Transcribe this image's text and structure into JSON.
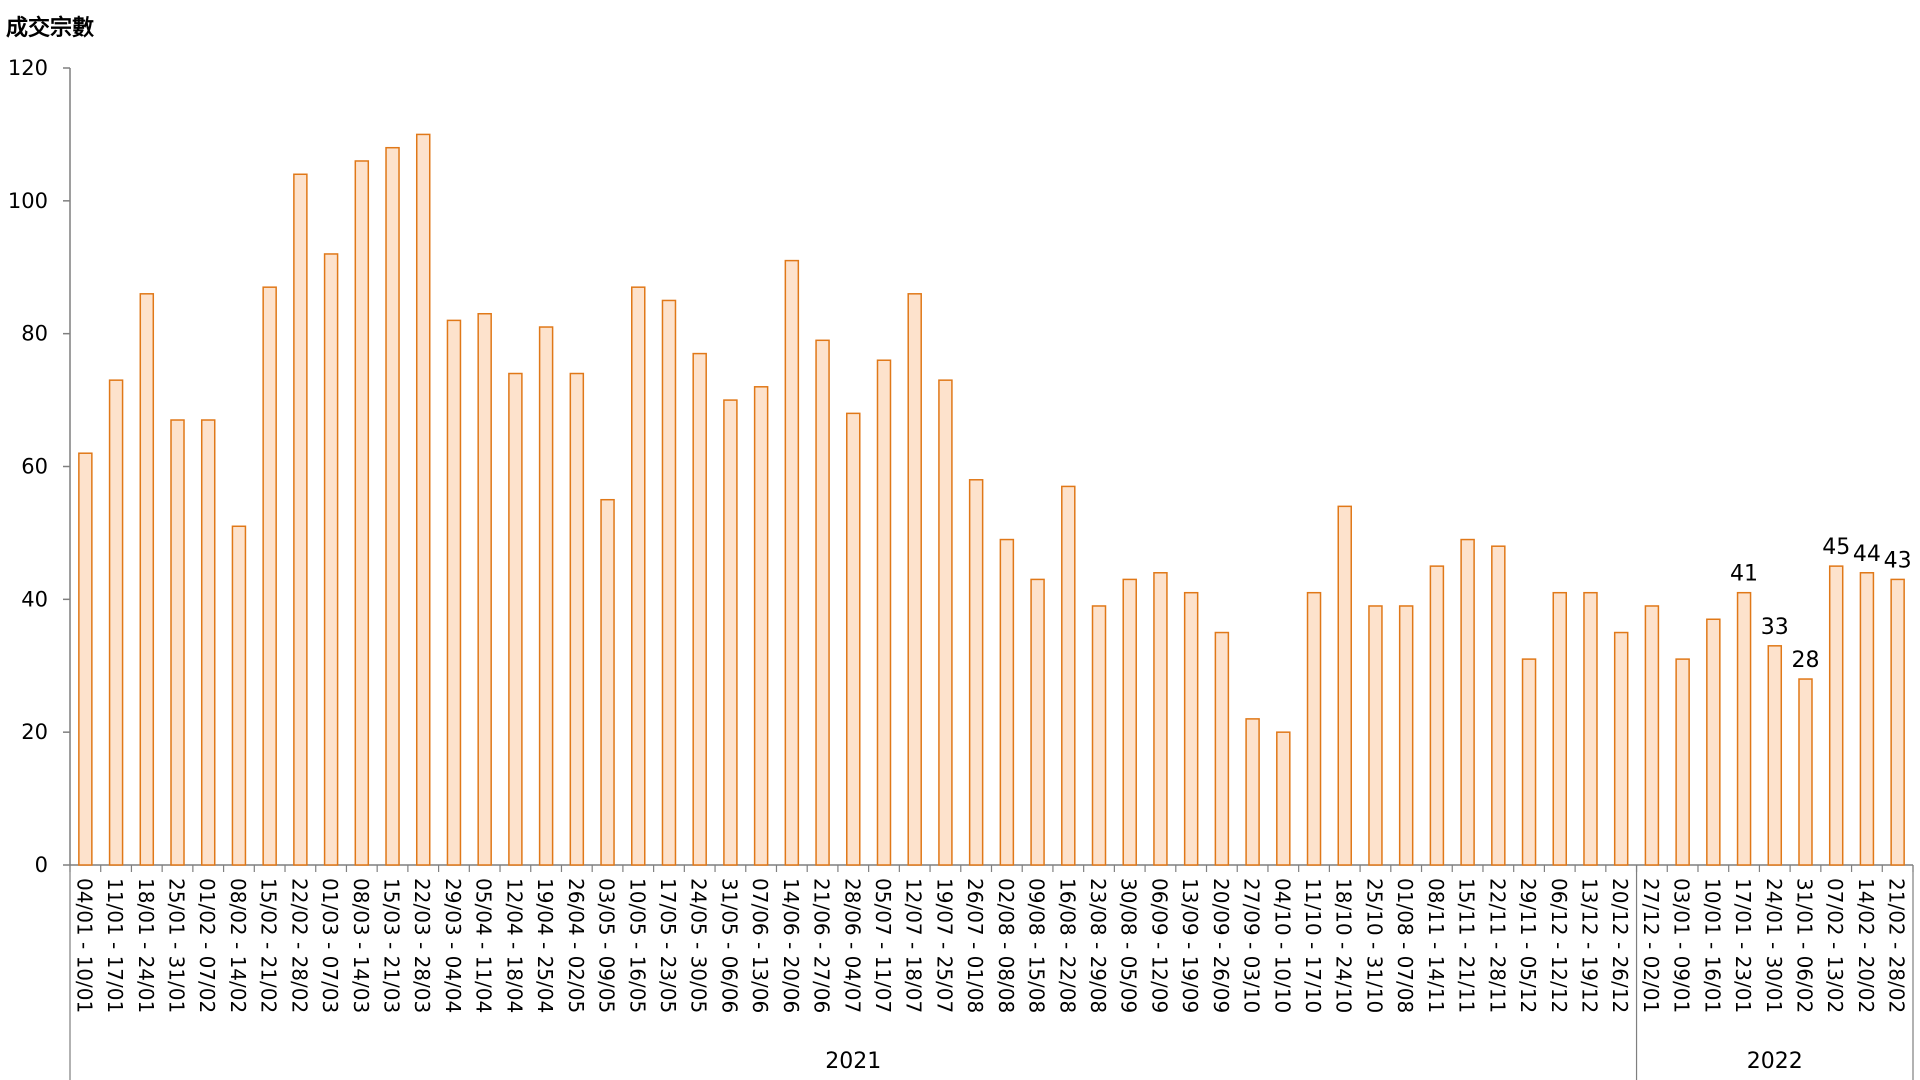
{
  "chart_data": {
    "type": "bar",
    "title": "",
    "ylabel": "成交宗數",
    "xlabel": "",
    "ylim": [
      0,
      120
    ],
    "yticks": [
      0,
      20,
      40,
      60,
      80,
      100,
      120
    ],
    "grid": false,
    "legend": "none",
    "colors": {
      "bar_fill": "#fde2cc",
      "bar_stroke": "#e07818",
      "axis": "#7f7f7f"
    },
    "categories": [
      "04/01 - 10/01",
      "11/01 - 17/01",
      "18/01 - 24/01",
      "25/01 - 31/01",
      "01/02 - 07/02",
      "08/02 - 14/02",
      "15/02 - 21/02",
      "22/02 - 28/02",
      "01/03 - 07/03",
      "08/03 - 14/03",
      "15/03 - 21/03",
      "22/03 - 28/03",
      "29/03 - 04/04",
      "05/04 - 11/04",
      "12/04 - 18/04",
      "19/04 - 25/04",
      "26/04 - 02/05",
      "03/05 - 09/05",
      "10/05 - 16/05",
      "17/05 - 23/05",
      "24/05 - 30/05",
      "31/05 - 06/06",
      "07/06 - 13/06",
      "14/06 - 20/06",
      "21/06 - 27/06",
      "28/06 - 04/07",
      "05/07 - 11/07",
      "12/07 - 18/07",
      "19/07 - 25/07",
      "26/07 - 01/08",
      "02/08 - 08/08",
      "09/08 - 15/08",
      "16/08 - 22/08",
      "23/08 - 29/08",
      "30/08 - 05/09",
      "06/09 - 12/09",
      "13/09 - 19/09",
      "20/09 - 26/09",
      "27/09 - 03/10",
      "04/10 - 10/10",
      "11/10 - 17/10",
      "18/10 - 24/10",
      "25/10 - 31/10",
      "01/08 - 07/08",
      "08/11 - 14/11",
      "15/11 - 21/11",
      "22/11 - 28/11",
      "29/11 - 05/12",
      "06/12 - 12/12",
      "13/12 - 19/12",
      "20/12 - 26/12",
      "27/12 - 02/01",
      "03/01 - 09/01",
      "10/01 - 16/01",
      "17/01 - 23/01",
      "24/01 - 30/01",
      "31/01 - 06/02",
      "07/02 - 13/02",
      "14/02 - 20/02",
      "21/02 - 28/02"
    ],
    "values": [
      62,
      73,
      86,
      67,
      67,
      51,
      87,
      104,
      92,
      106,
      108,
      110,
      82,
      83,
      74,
      81,
      74,
      55,
      87,
      85,
      77,
      70,
      72,
      91,
      79,
      68,
      76,
      86,
      73,
      58,
      49,
      43,
      57,
      39,
      43,
      44,
      41,
      35,
      22,
      20,
      41,
      54,
      39,
      39,
      45,
      49,
      48,
      31,
      41,
      41,
      35,
      39,
      31,
      37,
      41,
      33,
      28,
      45,
      44,
      43
    ],
    "data_labels": [
      {
        "index": 54,
        "label": "41"
      },
      {
        "index": 55,
        "label": "33"
      },
      {
        "index": 56,
        "label": "28"
      },
      {
        "index": 57,
        "label": "45"
      },
      {
        "index": 58,
        "label": "44"
      },
      {
        "index": 59,
        "label": "43"
      }
    ],
    "year_groups": [
      {
        "label": "2021",
        "start": 0,
        "end": 50
      },
      {
        "label": "2022",
        "start": 51,
        "end": 59
      }
    ]
  }
}
